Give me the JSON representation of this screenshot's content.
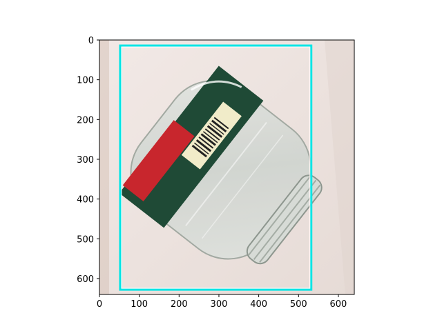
{
  "figure": {
    "background": "#ffffff",
    "image_description_icon": "glass-jar-photo",
    "colors": {
      "box_outer": "#00e5e5",
      "box_inner": "#ffffff",
      "wall_light": "#efe6e2",
      "wall_shadow": "#e3d8d2",
      "label_green": "#1f4a36",
      "label_red": "#c8262d",
      "barcode_paper": "#f1ecc9"
    }
  },
  "axes": {
    "x_ticks": [
      "0",
      "100",
      "200",
      "300",
      "400",
      "500",
      "600"
    ],
    "y_ticks": [
      "0",
      "100",
      "200",
      "300",
      "400",
      "500",
      "600"
    ],
    "x_tick_values": [
      0,
      100,
      200,
      300,
      400,
      500,
      600
    ],
    "y_tick_values": [
      0,
      100,
      200,
      300,
      400,
      500,
      600
    ],
    "xlim": [
      0,
      640
    ],
    "ylim": [
      640,
      0
    ]
  },
  "detection": {
    "box": {
      "x_min": 52,
      "y_min": 14,
      "x_max": 532,
      "y_max": 628
    }
  }
}
